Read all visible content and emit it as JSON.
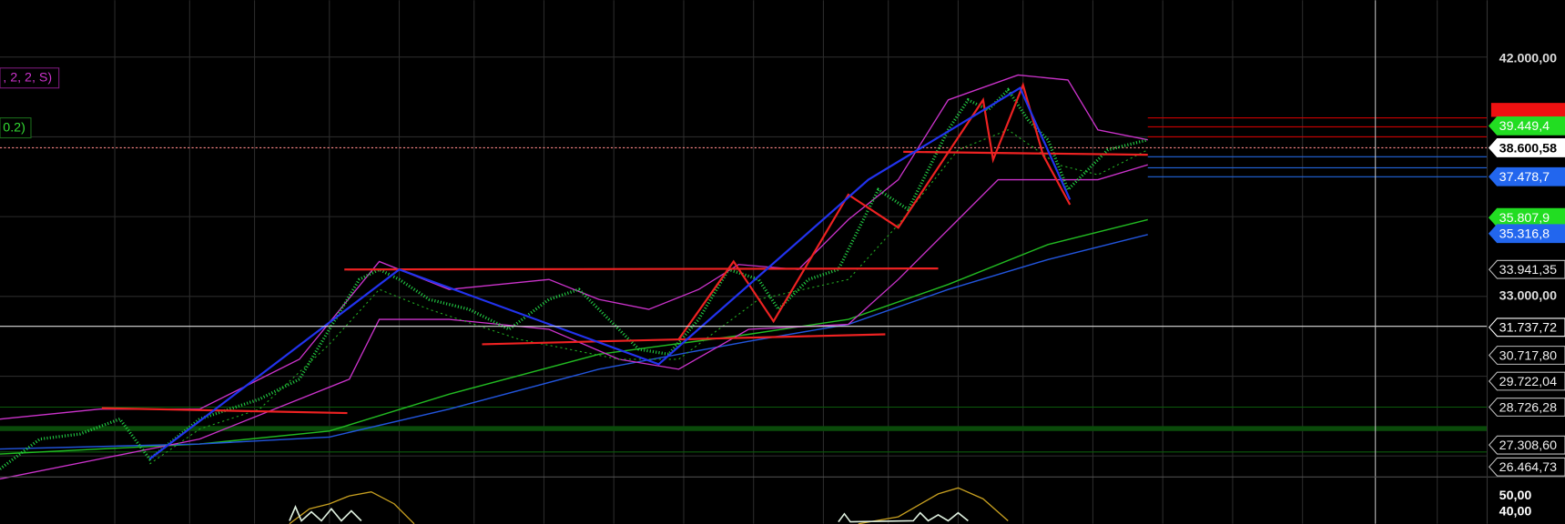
{
  "indicators": [
    ", 2, 2, S)",
    "0.2)"
  ],
  "price_axis": {
    "labels": [
      "42.000,00",
      "39.449,4",
      "38.600,58",
      "37.478,7",
      "35.807,9",
      "35.316,8",
      "33.941,35",
      "33.000,00",
      "31.737,72",
      "30.717,80",
      "29.722,04",
      "28.726,28",
      "27.308,60",
      "26.464,73"
    ]
  },
  "oscillator_axis": {
    "labels": [
      "50,00",
      "40,00"
    ]
  }
}
